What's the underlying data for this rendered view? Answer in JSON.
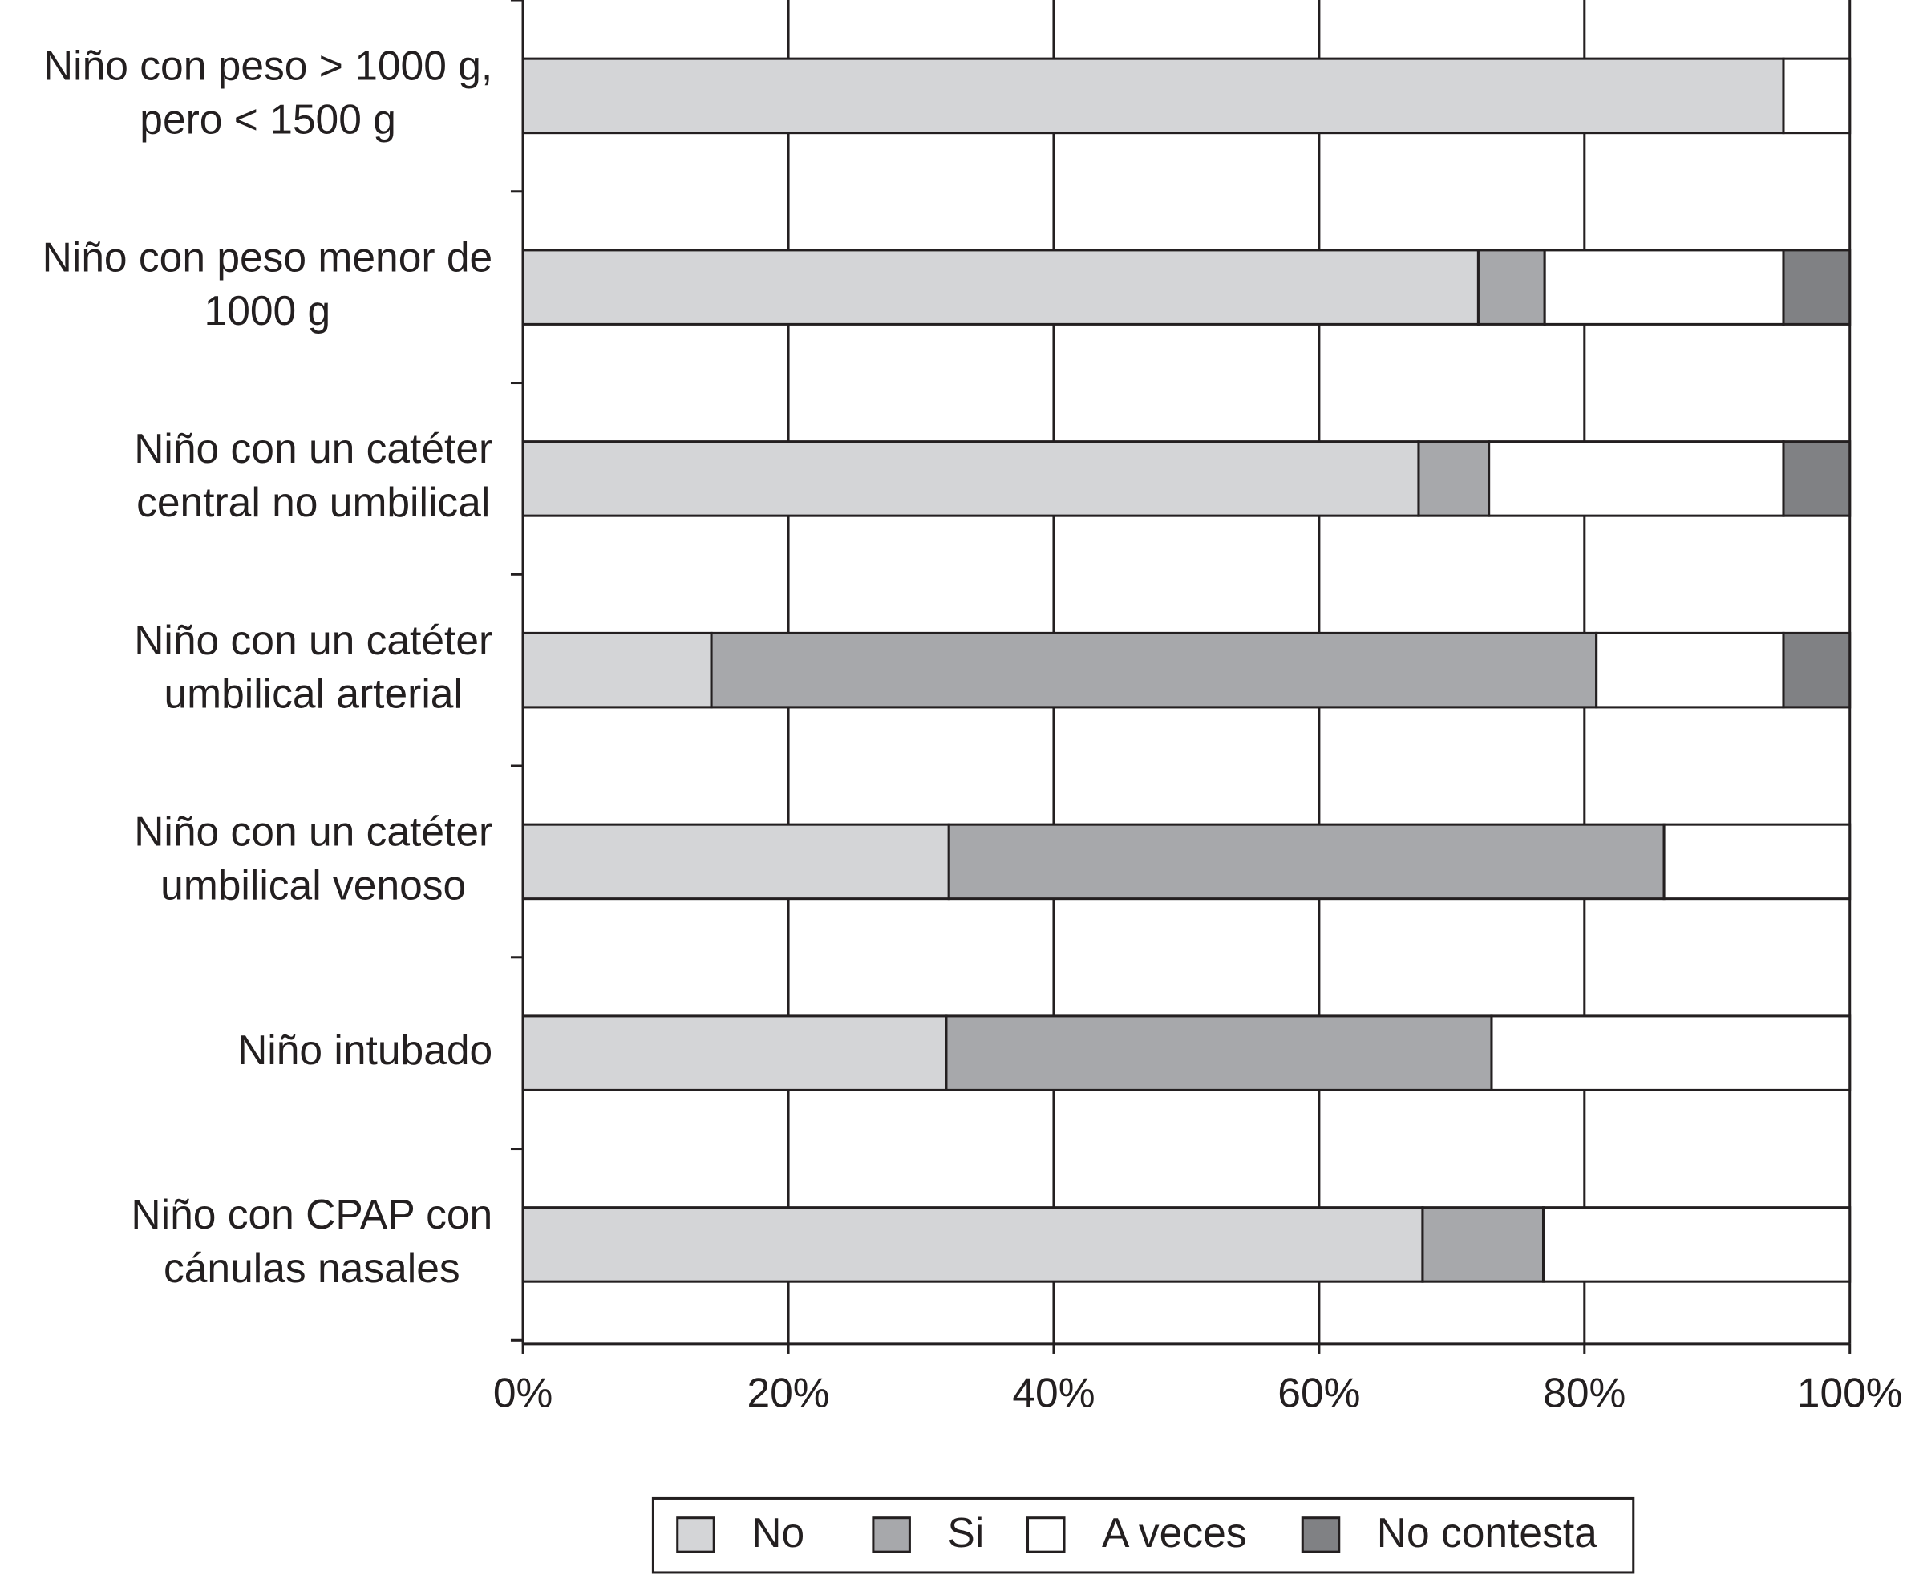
{
  "chart_data": {
    "type": "stacked-bar-horizontal",
    "categories": [
      [
        "Niño con peso > 1000 g,",
        "pero < 1500 g"
      ],
      [
        "Niño con peso menor de",
        "1000 g"
      ],
      [
        "Niño con un catéter",
        "central no umbilical"
      ],
      [
        "Niño con un catéter",
        "umbilical arterial"
      ],
      [
        "Niño con un catéter",
        "umbilical venoso"
      ],
      [
        "Niño intubado"
      ],
      [
        "Niño con CPAP con",
        "cánulas nasales"
      ]
    ],
    "series": [
      {
        "name": "No",
        "color": "#d4d5d7",
        "values": [
          95,
          72,
          67.5,
          14.2,
          32.1,
          31.9,
          67.8
        ]
      },
      {
        "name": "Si",
        "color": "#a7a8ab",
        "values": [
          0,
          5,
          5.3,
          66.7,
          53.9,
          41.1,
          9.1
        ]
      },
      {
        "name": "A veces",
        "color": "#ffffff",
        "values": [
          5,
          18,
          22.2,
          14.1,
          14,
          27,
          23.1
        ]
      },
      {
        "name": "No contesta",
        "color": "#808184",
        "values": [
          0,
          5,
          5,
          5,
          0,
          0,
          0
        ]
      }
    ],
    "xlim": [
      0,
      100
    ],
    "xticks": [
      {
        "value": 0,
        "label": "0%"
      },
      {
        "value": 20,
        "label": "20%"
      },
      {
        "value": 40,
        "label": "40%"
      },
      {
        "value": 60,
        "label": "60%"
      },
      {
        "value": 80,
        "label": "80%"
      },
      {
        "value": 100,
        "label": "100%"
      }
    ],
    "grid": true,
    "legend": "bottom"
  }
}
